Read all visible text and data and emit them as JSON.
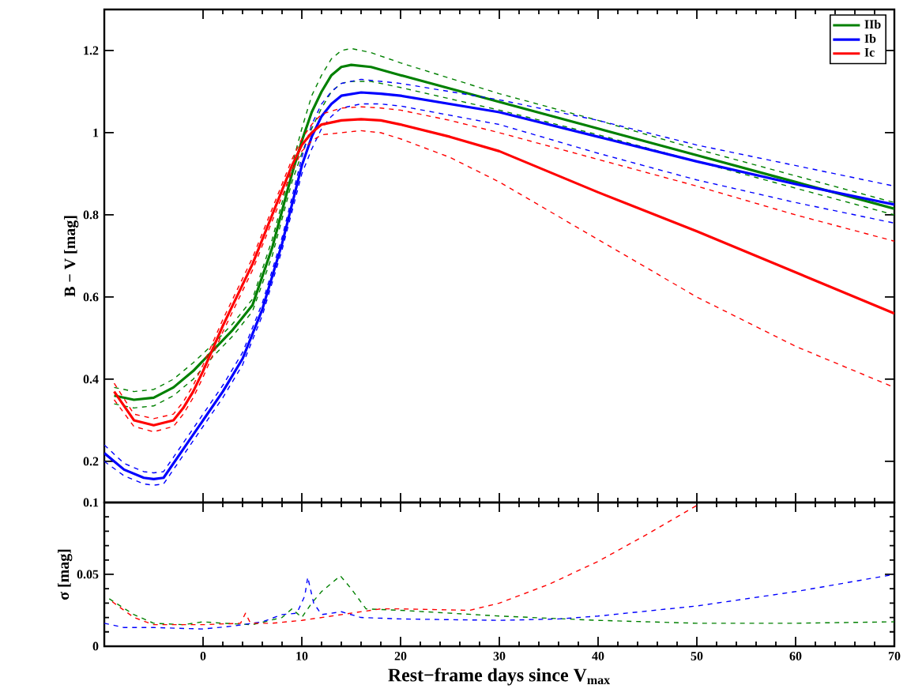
{
  "chart_data": [
    {
      "type": "line",
      "ylabel": "B − V [mag]",
      "xlim": [
        -10,
        70
      ],
      "ylim": [
        0.1,
        1.3
      ],
      "xticks": [
        0,
        10,
        20,
        30,
        40,
        50,
        60,
        70
      ],
      "yticks": [
        0.1,
        0.2,
        0.4,
        0.6,
        0.8,
        1,
        1.2
      ],
      "tick_labels": "y",
      "legend": "top right",
      "line_style": "solid",
      "marker": "none",
      "series": [
        {
          "name": "IIb",
          "color": "#008000",
          "x": [
            -9,
            -7,
            -5,
            -3,
            -1,
            1,
            3,
            5,
            7,
            8,
            9,
            10,
            11,
            12,
            13,
            14,
            15,
            17,
            20,
            30,
            40,
            50,
            60,
            70
          ],
          "values": [
            0.36,
            0.35,
            0.355,
            0.38,
            0.42,
            0.47,
            0.52,
            0.58,
            0.72,
            0.81,
            0.9,
            0.98,
            1.05,
            1.1,
            1.14,
            1.16,
            1.165,
            1.16,
            1.14,
            1.075,
            1.01,
            0.945,
            0.88,
            0.815
          ]
        },
        {
          "color": "#008000",
          "line_style": "dashed",
          "x": [
            -9,
            -7,
            -5,
            -3,
            -1,
            1,
            3,
            5,
            7,
            8,
            9,
            10,
            11,
            12,
            13,
            14,
            15,
            17,
            20,
            30,
            40,
            50,
            60,
            70
          ],
          "values": [
            0.34,
            0.33,
            0.335,
            0.36,
            0.4,
            0.455,
            0.505,
            0.565,
            0.7,
            0.79,
            0.88,
            0.95,
            1.01,
            1.06,
            1.1,
            1.12,
            1.125,
            1.125,
            1.11,
            1.055,
            0.995,
            0.93,
            0.865,
            0.8
          ]
        },
        {
          "color": "#008000",
          "line_style": "dashed",
          "x": [
            -9,
            -7,
            -5,
            -3,
            -1,
            1,
            3,
            5,
            7,
            8,
            9,
            10,
            11,
            12,
            13,
            14,
            15,
            17,
            20,
            30,
            40,
            50,
            60,
            70
          ],
          "values": [
            0.38,
            0.37,
            0.375,
            0.4,
            0.44,
            0.485,
            0.535,
            0.595,
            0.74,
            0.83,
            0.92,
            1.01,
            1.09,
            1.14,
            1.18,
            1.2,
            1.205,
            1.195,
            1.17,
            1.095,
            1.03,
            0.96,
            0.895,
            0.83
          ]
        },
        {
          "name": "Ib",
          "color": "#0000ff",
          "x": [
            -10,
            -8,
            -6,
            -5,
            -4,
            -2,
            0,
            2,
            4,
            6,
            8,
            10,
            11,
            12,
            13,
            14,
            16,
            18,
            20,
            30,
            40,
            50,
            60,
            70
          ],
          "values": [
            0.22,
            0.18,
            0.16,
            0.157,
            0.16,
            0.23,
            0.3,
            0.37,
            0.45,
            0.57,
            0.73,
            0.92,
            0.99,
            1.04,
            1.07,
            1.09,
            1.098,
            1.095,
            1.09,
            1.05,
            0.99,
            0.93,
            0.875,
            0.825
          ]
        },
        {
          "color": "#0000ff",
          "line_style": "dashed",
          "x": [
            -10,
            -8,
            -6,
            -5,
            -4,
            -2,
            0,
            2,
            4,
            6,
            8,
            10,
            11,
            12,
            13,
            14,
            16,
            18,
            20,
            30,
            40,
            50,
            60,
            70
          ],
          "values": [
            0.2,
            0.165,
            0.145,
            0.142,
            0.145,
            0.215,
            0.285,
            0.355,
            0.435,
            0.555,
            0.715,
            0.9,
            0.96,
            1.01,
            1.04,
            1.06,
            1.07,
            1.07,
            1.065,
            1.02,
            0.95,
            0.885,
            0.83,
            0.78
          ]
        },
        {
          "color": "#0000ff",
          "line_style": "dashed",
          "x": [
            -10,
            -8,
            -6,
            -5,
            -4,
            -2,
            0,
            2,
            4,
            6,
            8,
            10,
            11,
            12,
            13,
            14,
            16,
            18,
            20,
            30,
            40,
            50,
            60,
            70
          ],
          "values": [
            0.24,
            0.195,
            0.175,
            0.172,
            0.175,
            0.245,
            0.315,
            0.385,
            0.465,
            0.585,
            0.745,
            0.94,
            1.02,
            1.07,
            1.1,
            1.12,
            1.13,
            1.125,
            1.12,
            1.08,
            1.03,
            0.97,
            0.92,
            0.87
          ]
        },
        {
          "name": "Ic",
          "color": "#ff0000",
          "x": [
            -9,
            -7,
            -5,
            -3,
            -2,
            -1,
            0,
            2,
            4,
            5,
            7,
            9,
            10,
            11,
            12,
            14,
            16,
            18,
            20,
            25,
            30,
            40,
            50,
            60,
            70
          ],
          "values": [
            0.37,
            0.3,
            0.288,
            0.3,
            0.33,
            0.37,
            0.42,
            0.53,
            0.63,
            0.68,
            0.8,
            0.92,
            0.97,
            1.0,
            1.02,
            1.03,
            1.033,
            1.03,
            1.02,
            0.99,
            0.955,
            0.855,
            0.76,
            0.66,
            0.56
          ]
        },
        {
          "color": "#ff0000",
          "line_style": "dashed",
          "x": [
            -9,
            -7,
            -5,
            -3,
            -2,
            -1,
            0,
            2,
            4,
            5,
            7,
            9,
            10,
            11,
            12,
            14,
            16,
            18,
            20,
            25,
            30,
            40,
            50,
            60,
            70
          ],
          "values": [
            0.35,
            0.285,
            0.272,
            0.285,
            0.315,
            0.355,
            0.405,
            0.515,
            0.615,
            0.665,
            0.785,
            0.905,
            0.955,
            0.98,
            0.995,
            1.0,
            1.005,
            1.0,
            0.985,
            0.94,
            0.88,
            0.74,
            0.6,
            0.48,
            0.38
          ]
        },
        {
          "color": "#ff0000",
          "line_style": "dashed",
          "x": [
            -9,
            -7,
            -5,
            -3,
            -2,
            -1,
            0,
            2,
            4,
            5,
            7,
            9,
            10,
            11,
            12,
            14,
            16,
            18,
            20,
            25,
            30,
            40,
            50,
            60,
            70
          ],
          "values": [
            0.39,
            0.315,
            0.304,
            0.315,
            0.345,
            0.385,
            0.435,
            0.545,
            0.645,
            0.695,
            0.815,
            0.935,
            0.985,
            1.02,
            1.045,
            1.06,
            1.063,
            1.06,
            1.055,
            1.03,
            1.0,
            0.935,
            0.87,
            0.8,
            0.736
          ]
        }
      ]
    },
    {
      "type": "line",
      "xlabel": "Rest−frame days since V$_{max}$",
      "ylabel": "σ [mag]",
      "xlim": [
        -10,
        70
      ],
      "ylim": [
        0,
        0.1
      ],
      "xticks": [
        0,
        10,
        20,
        30,
        40,
        50,
        60,
        70
      ],
      "yticks": [
        0,
        0.05,
        {
          "value": 0.1,
          "label": null
        }
      ],
      "line_style": "dashed",
      "marker": "none",
      "series": [
        {
          "color": "#008000",
          "x": [
            -9.5,
            -7,
            -5,
            -2,
            0,
            2,
            5,
            8,
            9,
            10,
            11,
            12,
            13.9,
            15,
            16.5,
            20,
            30,
            40,
            50,
            60,
            70
          ],
          "values": [
            0.033,
            0.022,
            0.016,
            0.015,
            0.017,
            0.016,
            0.015,
            0.02,
            0.026,
            0.02,
            0.03,
            0.038,
            0.049,
            0.04,
            0.026,
            0.025,
            0.021,
            0.018,
            0.016,
            0.016,
            0.017
          ]
        },
        {
          "color": "#0000ff",
          "x": [
            -10,
            -8,
            -5,
            0,
            3,
            6,
            8,
            9.5,
            10.3,
            10.6,
            11.2,
            12,
            14,
            16,
            20,
            30,
            36,
            40,
            50,
            60,
            70
          ],
          "values": [
            0.016,
            0.013,
            0.013,
            0.012,
            0.014,
            0.017,
            0.022,
            0.023,
            0.035,
            0.048,
            0.03,
            0.022,
            0.024,
            0.02,
            0.019,
            0.018,
            0.019,
            0.021,
            0.028,
            0.038,
            0.05
          ]
        },
        {
          "color": "#ff0000",
          "x": [
            -9.2,
            -7,
            -5,
            0,
            3.8,
            4.3,
            4.8,
            7,
            10,
            14,
            18,
            20,
            27,
            30,
            35,
            40,
            45,
            50
          ],
          "values": [
            0.031,
            0.02,
            0.015,
            0.015,
            0.016,
            0.023,
            0.016,
            0.016,
            0.018,
            0.022,
            0.026,
            0.026,
            0.025,
            0.03,
            0.043,
            0.059,
            0.078,
            0.098
          ]
        }
      ]
    }
  ]
}
